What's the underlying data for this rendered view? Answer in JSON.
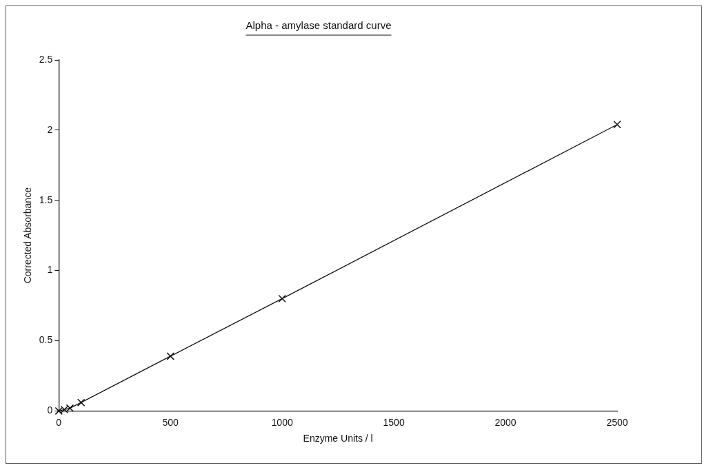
{
  "chart_data": {
    "type": "line",
    "title": "Alpha - amylase standard curve",
    "xlabel": "Enzyme Units / l",
    "ylabel": "Corrected Absorbance",
    "x": [
      0,
      25,
      50,
      100,
      500,
      1000,
      2500
    ],
    "series": [
      {
        "color": "#111111",
        "values": [
          0,
          0.01,
          0.02,
          0.06,
          0.39,
          0.8,
          2.04
        ]
      }
    ],
    "xlim": [
      0,
      2500
    ],
    "xticks": [
      0,
      500,
      1000,
      1500,
      2000,
      2500
    ],
    "ylim": [
      0,
      2.5
    ],
    "yticks": [
      0,
      0.5,
      1,
      1.5,
      2,
      2.5
    ],
    "grid": false,
    "legend": false,
    "marker": "cross",
    "line_style": "solid"
  }
}
